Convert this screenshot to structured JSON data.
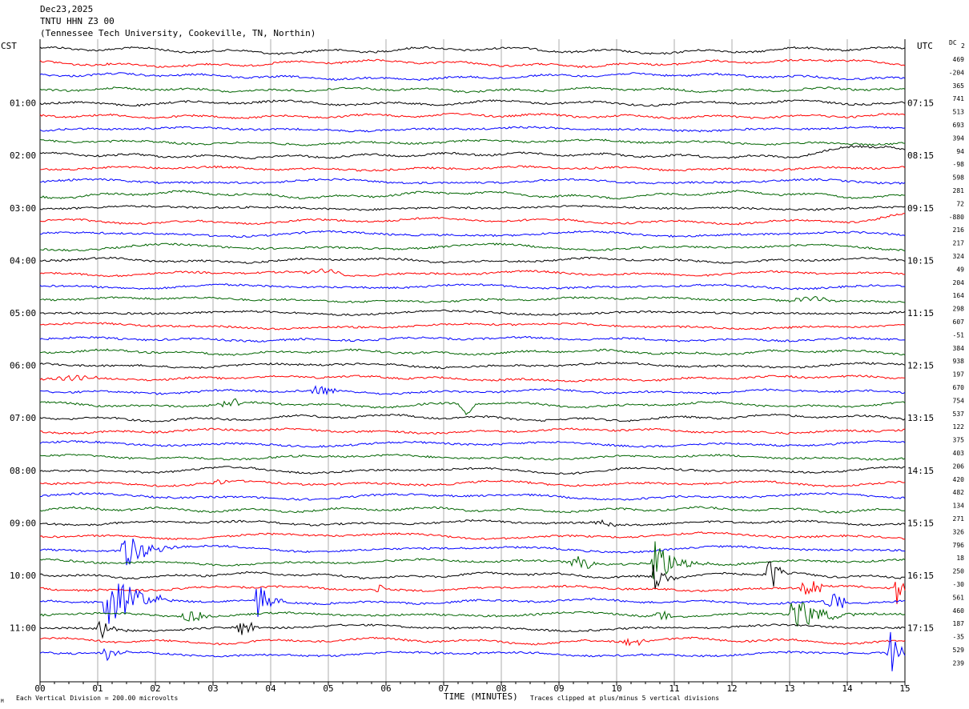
{
  "header": {
    "date": "Dec23,2025",
    "station": "TNTU HHN Z3 00",
    "location": "(Tennessee Tech University, Cookeville, TN, Northin)"
  },
  "left_zone": "CST",
  "right_zone": "UTC",
  "dc_label": "DC",
  "dc_corner": "2",
  "x_title": "TIME (MINUTES)",
  "footer_left": "Each Vertical Division =  200.00 microvolts",
  "footer_mark": "M",
  "footer_right": "Traces clipped at plus/minus 5 vertical divisions",
  "colors": {
    "black": "#000000",
    "red": "#ff0000",
    "blue": "#0000ff",
    "green": "#006400",
    "grid": "#999999"
  },
  "chart_data": {
    "type": "line",
    "title": "TNTU HHN Z3 00",
    "xlabel": "TIME (MINUTES)",
    "ylabel": "",
    "xlim": [
      0,
      15
    ],
    "x_ticks": [
      "00",
      "01",
      "02",
      "03",
      "04",
      "05",
      "06",
      "07",
      "08",
      "09",
      "10",
      "11",
      "12",
      "13",
      "14",
      "15"
    ],
    "row_minutes": 15,
    "left_time_labels": [
      "01:00",
      "02:00",
      "03:00",
      "04:00",
      "05:00",
      "06:00",
      "07:00",
      "08:00",
      "09:00",
      "10:00",
      "11:00"
    ],
    "right_time_labels": [
      "07:15",
      "08:15",
      "09:15",
      "10:15",
      "11:15",
      "12:15",
      "13:15",
      "14:15",
      "15:15",
      "16:15",
      "17:15"
    ],
    "label_every_rows": 4,
    "label_start_row": 4,
    "trace_color_cycle": [
      "black",
      "red",
      "blue",
      "green"
    ],
    "dc_offsets": [
      469,
      -204,
      365,
      741,
      513,
      693,
      394,
      94,
      -98,
      598,
      281,
      72,
      -880,
      216,
      217,
      324,
      49,
      204,
      164,
      298,
      607,
      -51,
      384,
      938,
      197,
      670,
      754,
      537,
      122,
      375,
      403,
      206,
      420,
      482,
      134,
      271,
      326,
      796,
      18,
      250,
      -30,
      561,
      460,
      187,
      -35,
      529,
      239
    ],
    "events": [
      {
        "row": 1,
        "t": 13.0,
        "dur": 0.8,
        "amp": 4,
        "kind": "drift"
      },
      {
        "row": 8,
        "t": 13.0,
        "dur": 1.2,
        "amp": 12,
        "kind": "drift"
      },
      {
        "row": 13,
        "t": 14.3,
        "dur": 0.6,
        "amp": 6,
        "kind": "drift"
      },
      {
        "row": 17,
        "t": 5.0,
        "dur": 0.7,
        "amp": 7,
        "kind": "swell"
      },
      {
        "row": 19,
        "t": 13.4,
        "dur": 0.8,
        "amp": 8,
        "kind": "swell"
      },
      {
        "row": 25,
        "t": 0.6,
        "dur": 1.2,
        "amp": 7,
        "kind": "swell"
      },
      {
        "row": 26,
        "t": 4.9,
        "dur": 0.6,
        "amp": 6,
        "kind": "burst"
      },
      {
        "row": 27,
        "t": 3.3,
        "dur": 0.5,
        "amp": 6,
        "kind": "burst"
      },
      {
        "row": 27,
        "t": 7.4,
        "dur": 0.3,
        "amp": 14,
        "kind": "dip"
      },
      {
        "row": 33,
        "t": 3.1,
        "dur": 0.3,
        "amp": 5,
        "kind": "burst"
      },
      {
        "row": 36,
        "t": 9.8,
        "dur": 0.6,
        "amp": 5,
        "kind": "burst"
      },
      {
        "row": 38,
        "t": 1.4,
        "dur": 1.0,
        "amp": 26,
        "kind": "quake"
      },
      {
        "row": 39,
        "t": 10.6,
        "dur": 1.0,
        "amp": 30,
        "kind": "quake"
      },
      {
        "row": 39,
        "t": 9.4,
        "dur": 0.6,
        "amp": 8,
        "kind": "burst"
      },
      {
        "row": 40,
        "t": 10.6,
        "dur": 0.5,
        "amp": 22,
        "kind": "quake"
      },
      {
        "row": 40,
        "t": 12.6,
        "dur": 0.4,
        "amp": 30,
        "kind": "quake"
      },
      {
        "row": 41,
        "t": 14.8,
        "dur": 0.3,
        "amp": 24,
        "kind": "quake"
      },
      {
        "row": 41,
        "t": 13.4,
        "dur": 0.5,
        "amp": 12,
        "kind": "burst"
      },
      {
        "row": 41,
        "t": 5.9,
        "dur": 0.3,
        "amp": 6,
        "kind": "burst"
      },
      {
        "row": 42,
        "t": 1.1,
        "dur": 1.2,
        "amp": 40,
        "kind": "quake"
      },
      {
        "row": 42,
        "t": 3.7,
        "dur": 0.5,
        "amp": 26,
        "kind": "quake"
      },
      {
        "row": 42,
        "t": 13.8,
        "dur": 0.5,
        "amp": 10,
        "kind": "burst"
      },
      {
        "row": 43,
        "t": 13.0,
        "dur": 1.2,
        "amp": 26,
        "kind": "quake"
      },
      {
        "row": 43,
        "t": 2.7,
        "dur": 0.6,
        "amp": 8,
        "kind": "burst"
      },
      {
        "row": 43,
        "t": 10.8,
        "dur": 0.4,
        "amp": 8,
        "kind": "burst"
      },
      {
        "row": 44,
        "t": 1.0,
        "dur": 0.5,
        "amp": 18,
        "kind": "quake"
      },
      {
        "row": 44,
        "t": 3.6,
        "dur": 0.5,
        "amp": 12,
        "kind": "burst"
      },
      {
        "row": 45,
        "t": 10.3,
        "dur": 0.5,
        "amp": 5,
        "kind": "burst"
      },
      {
        "row": 46,
        "t": 14.7,
        "dur": 0.4,
        "amp": 30,
        "kind": "quake"
      },
      {
        "row": 46,
        "t": 1.1,
        "dur": 0.4,
        "amp": 14,
        "kind": "quake"
      }
    ]
  }
}
